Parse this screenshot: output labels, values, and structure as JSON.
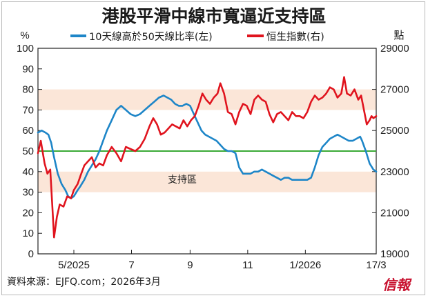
{
  "chart_data": {
    "type": "line",
    "title": "港股平滑中線市寬逼近支持區",
    "left_axis": {
      "unit": "%",
      "ylim": [
        0,
        100
      ],
      "ticks": [
        0,
        10,
        20,
        30,
        40,
        50,
        60,
        70,
        80,
        90,
        100
      ]
    },
    "right_axis": {
      "unit": "點",
      "ylim": [
        19000,
        29000
      ],
      "ticks": [
        19000,
        21000,
        23000,
        25000,
        27000,
        29000
      ]
    },
    "x_ticks": [
      "5/2025",
      "7",
      "9",
      "11",
      "1/2026",
      "17/3"
    ],
    "x_tick_dates": [
      "2025-05-01",
      "2025-07-01",
      "2025-09-01",
      "2025-11-01",
      "2026-01-01",
      "2026-03-17"
    ],
    "x_range": [
      "2025-03-24",
      "2026-03-17"
    ],
    "bands": [
      [
        70,
        80
      ],
      [
        30,
        40
      ]
    ],
    "reference_line": 50,
    "annotation": "支持區",
    "series": [
      {
        "name": "10天線高於50天線比率(左)",
        "axis": "left",
        "color": "#1e86c8",
        "points": [
          [
            "2025-03-24",
            59
          ],
          [
            "2025-03-28",
            60
          ],
          [
            "2025-04-01",
            59
          ],
          [
            "2025-04-04",
            58
          ],
          [
            "2025-04-07",
            54
          ],
          [
            "2025-04-10",
            47
          ],
          [
            "2025-04-14",
            39
          ],
          [
            "2025-04-18",
            34
          ],
          [
            "2025-04-22",
            31
          ],
          [
            "2025-04-25",
            28
          ],
          [
            "2025-04-28",
            27
          ],
          [
            "2025-05-01",
            28
          ],
          [
            "2025-05-05",
            31
          ],
          [
            "2025-05-08",
            33
          ],
          [
            "2025-05-12",
            36
          ],
          [
            "2025-05-16",
            40
          ],
          [
            "2025-05-20",
            43
          ],
          [
            "2025-05-24",
            46
          ],
          [
            "2025-05-28",
            50
          ],
          [
            "2025-06-01",
            55
          ],
          [
            "2025-06-05",
            60
          ],
          [
            "2025-06-10",
            65
          ],
          [
            "2025-06-15",
            70
          ],
          [
            "2025-06-20",
            72
          ],
          [
            "2025-06-25",
            70
          ],
          [
            "2025-06-30",
            68
          ],
          [
            "2025-07-05",
            67
          ],
          [
            "2025-07-10",
            68
          ],
          [
            "2025-07-15",
            70
          ],
          [
            "2025-07-20",
            72
          ],
          [
            "2025-07-25",
            74
          ],
          [
            "2025-07-30",
            76
          ],
          [
            "2025-08-04",
            77
          ],
          [
            "2025-08-08",
            76
          ],
          [
            "2025-08-12",
            75
          ],
          [
            "2025-08-16",
            73
          ],
          [
            "2025-08-20",
            72
          ],
          [
            "2025-08-24",
            72
          ],
          [
            "2025-08-28",
            73
          ],
          [
            "2025-09-01",
            72
          ],
          [
            "2025-09-05",
            68
          ],
          [
            "2025-09-09",
            64
          ],
          [
            "2025-09-13",
            60
          ],
          [
            "2025-09-17",
            58
          ],
          [
            "2025-09-21",
            57
          ],
          [
            "2025-09-25",
            56
          ],
          [
            "2025-09-29",
            55
          ],
          [
            "2025-10-03",
            53
          ],
          [
            "2025-10-07",
            51
          ],
          [
            "2025-10-11",
            50
          ],
          [
            "2025-10-15",
            50
          ],
          [
            "2025-10-19",
            49
          ],
          [
            "2025-10-23",
            42
          ],
          [
            "2025-10-27",
            39
          ],
          [
            "2025-10-31",
            39
          ],
          [
            "2025-11-04",
            39
          ],
          [
            "2025-11-08",
            40
          ],
          [
            "2025-11-12",
            40
          ],
          [
            "2025-11-16",
            41
          ],
          [
            "2025-11-20",
            40
          ],
          [
            "2025-11-24",
            39
          ],
          [
            "2025-11-28",
            38
          ],
          [
            "2025-12-02",
            37
          ],
          [
            "2025-12-06",
            36
          ],
          [
            "2025-12-10",
            37
          ],
          [
            "2025-12-14",
            37
          ],
          [
            "2025-12-18",
            36
          ],
          [
            "2025-12-22",
            36
          ],
          [
            "2025-12-26",
            36
          ],
          [
            "2025-12-30",
            36
          ],
          [
            "2026-01-03",
            36
          ],
          [
            "2026-01-07",
            37
          ],
          [
            "2026-01-11",
            42
          ],
          [
            "2026-01-15",
            48
          ],
          [
            "2026-01-19",
            52
          ],
          [
            "2026-01-23",
            54
          ],
          [
            "2026-01-27",
            56
          ],
          [
            "2026-01-31",
            57
          ],
          [
            "2026-02-04",
            58
          ],
          [
            "2026-02-08",
            57
          ],
          [
            "2026-02-12",
            56
          ],
          [
            "2026-02-16",
            55
          ],
          [
            "2026-02-20",
            55
          ],
          [
            "2026-02-24",
            56
          ],
          [
            "2026-02-28",
            57
          ],
          [
            "2026-03-02",
            55
          ],
          [
            "2026-03-06",
            50
          ],
          [
            "2026-03-10",
            44
          ],
          [
            "2026-03-14",
            41
          ],
          [
            "2026-03-17",
            40
          ]
        ]
      },
      {
        "name": "恒生指數(右)",
        "axis": "right",
        "color": "#e0141e",
        "points": [
          [
            "2025-03-24",
            23900
          ],
          [
            "2025-03-27",
            24500
          ],
          [
            "2025-03-31",
            23400
          ],
          [
            "2025-04-03",
            22900
          ],
          [
            "2025-04-06",
            23100
          ],
          [
            "2025-04-08",
            21500
          ],
          [
            "2025-04-10",
            19800
          ],
          [
            "2025-04-13",
            20800
          ],
          [
            "2025-04-16",
            21400
          ],
          [
            "2025-04-20",
            21300
          ],
          [
            "2025-04-24",
            21800
          ],
          [
            "2025-04-28",
            21700
          ],
          [
            "2025-05-01",
            22100
          ],
          [
            "2025-05-05",
            22400
          ],
          [
            "2025-05-08",
            22800
          ],
          [
            "2025-05-12",
            23300
          ],
          [
            "2025-05-16",
            23500
          ],
          [
            "2025-05-20",
            23700
          ],
          [
            "2025-05-24",
            23200
          ],
          [
            "2025-05-28",
            23400
          ],
          [
            "2025-06-01",
            23300
          ],
          [
            "2025-06-05",
            23800
          ],
          [
            "2025-06-10",
            24200
          ],
          [
            "2025-06-15",
            23900
          ],
          [
            "2025-06-20",
            23500
          ],
          [
            "2025-06-25",
            24200
          ],
          [
            "2025-06-30",
            24100
          ],
          [
            "2025-07-05",
            24000
          ],
          [
            "2025-07-10",
            24200
          ],
          [
            "2025-07-15",
            24600
          ],
          [
            "2025-07-20",
            25200
          ],
          [
            "2025-07-24",
            25600
          ],
          [
            "2025-07-28",
            25300
          ],
          [
            "2025-08-01",
            24800
          ],
          [
            "2025-08-05",
            24900
          ],
          [
            "2025-08-09",
            25100
          ],
          [
            "2025-08-13",
            25300
          ],
          [
            "2025-08-17",
            25200
          ],
          [
            "2025-08-21",
            25100
          ],
          [
            "2025-08-25",
            25500
          ],
          [
            "2025-08-29",
            25200
          ],
          [
            "2025-09-02",
            25500
          ],
          [
            "2025-09-06",
            25700
          ],
          [
            "2025-09-10",
            26200
          ],
          [
            "2025-09-14",
            26800
          ],
          [
            "2025-09-18",
            26500
          ],
          [
            "2025-09-22",
            26300
          ],
          [
            "2025-09-26",
            26600
          ],
          [
            "2025-09-30",
            26800
          ],
          [
            "2025-10-03",
            27300
          ],
          [
            "2025-10-07",
            26800
          ],
          [
            "2025-10-11",
            25900
          ],
          [
            "2025-10-15",
            25800
          ],
          [
            "2025-10-19",
            25300
          ],
          [
            "2025-10-23",
            25900
          ],
          [
            "2025-10-27",
            26300
          ],
          [
            "2025-10-31",
            26200
          ],
          [
            "2025-11-04",
            25800
          ],
          [
            "2025-11-08",
            26500
          ],
          [
            "2025-11-12",
            26700
          ],
          [
            "2025-11-16",
            26500
          ],
          [
            "2025-11-20",
            26400
          ],
          [
            "2025-11-24",
            25800
          ],
          [
            "2025-11-28",
            25400
          ],
          [
            "2025-12-02",
            25800
          ],
          [
            "2025-12-06",
            25900
          ],
          [
            "2025-12-10",
            25700
          ],
          [
            "2025-12-14",
            25500
          ],
          [
            "2025-12-18",
            25900
          ],
          [
            "2025-12-22",
            25700
          ],
          [
            "2025-12-26",
            25700
          ],
          [
            "2025-12-30",
            25600
          ],
          [
            "2026-01-03",
            25900
          ],
          [
            "2026-01-07",
            26400
          ],
          [
            "2026-01-11",
            26700
          ],
          [
            "2026-01-15",
            26500
          ],
          [
            "2026-01-19",
            26600
          ],
          [
            "2026-01-23",
            26800
          ],
          [
            "2026-01-27",
            27100
          ],
          [
            "2026-01-31",
            27000
          ],
          [
            "2026-02-04",
            26600
          ],
          [
            "2026-02-08",
            26800
          ],
          [
            "2026-02-11",
            27600
          ],
          [
            "2026-02-14",
            26800
          ],
          [
            "2026-02-18",
            26700
          ],
          [
            "2026-02-22",
            27000
          ],
          [
            "2026-02-26",
            26500
          ],
          [
            "2026-03-01",
            26700
          ],
          [
            "2026-03-04",
            26000
          ],
          [
            "2026-03-07",
            25300
          ],
          [
            "2026-03-10",
            25500
          ],
          [
            "2026-03-12",
            25700
          ],
          [
            "2026-03-14",
            25600
          ],
          [
            "2026-03-17",
            25700
          ]
        ]
      }
    ]
  },
  "source": "資料來源：EJFQ.com；2026年3月",
  "logo": "信報"
}
